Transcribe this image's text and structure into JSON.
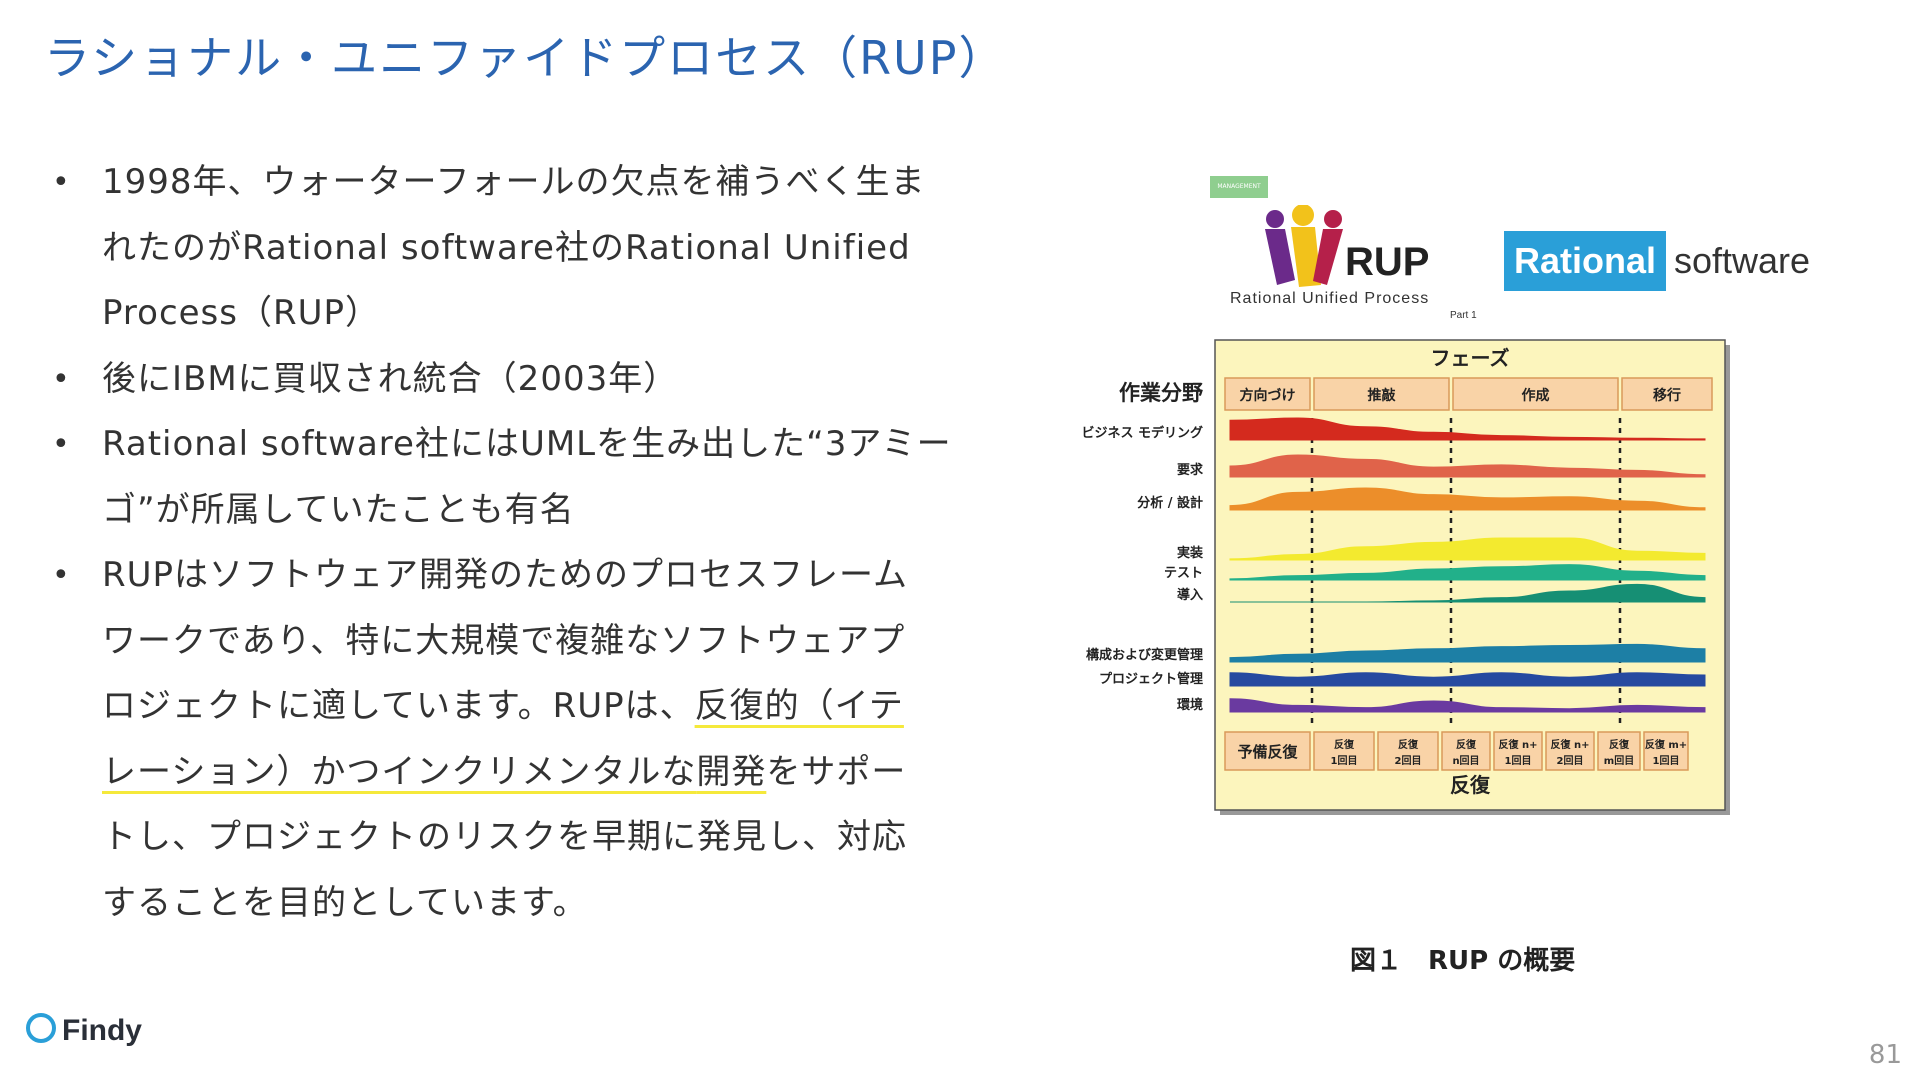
{
  "slide": {
    "title": "ラショナル・ユニファイドプロセス（RUP）",
    "page_number": "81"
  },
  "bullets": [
    {
      "lines": [
        "1998年、ウォーターフォールの欠点を補うべく生ま",
        "れたのがRational software社のRational Unified",
        "Process（RUP）"
      ]
    },
    {
      "lines": [
        "後にIBMに買収され統合（2003年）"
      ]
    },
    {
      "lines": [
        "Rational software社にはUMLを生み出した“3アミー",
        "ゴ”が所属していたことも有名"
      ]
    },
    {
      "parts": {
        "l1": "RUPはソフトウェア開発のためのプロセスフレーム",
        "l2": "ワークであり、特に大規模で複雑なソフトウェアプ",
        "l3a": "ロジェクトに適しています。RUPは、",
        "l3b": "反復的（イテ",
        "l4a": "レーション）かつインクリメンタルな",
        "l4b": "開発",
        "l4c": "をサポー",
        "l5": "トし、プロジェクトのリスクを早期に発見し、対応",
        "l6": "することを目的としています。"
      }
    }
  ],
  "figure": {
    "management_badge": "MANAGEMENT",
    "rup_logo_text": "RUP",
    "rup_logo_sub": "Rational Unified Process",
    "rup_logo_part": "Part 1",
    "rational_label": "Rational",
    "rational_software": "software",
    "caption": "図１　RUP の概要",
    "colors": {
      "panel_bg": "#fcf5bd",
      "tab_bg": "#f9d3a7",
      "tab_border": "#d99a5a"
    }
  },
  "chart_data": {
    "type": "area",
    "title": "フェーズ",
    "ylabel": "作業分野",
    "xlabel": "反復",
    "phases": [
      "方向づけ",
      "推敲",
      "作成",
      "移行"
    ],
    "iterations": [
      "予備反復",
      "反復\n1回目",
      "反復\n2回目",
      "反復\nn回目",
      "反復 n+\n1回目",
      "反復 n+\n2回目",
      "反復\nm回目",
      "反復 m+\n1回目"
    ],
    "disciplines": [
      {
        "name": "ビジネス モデリング",
        "color": "#d42a1e",
        "values": [
          0.9,
          1.0,
          0.6,
          0.35,
          0.2,
          0.12,
          0.08,
          0.05
        ]
      },
      {
        "name": "要求",
        "color": "#e0634a",
        "values": [
          0.5,
          1.0,
          0.8,
          0.45,
          0.55,
          0.4,
          0.3,
          0.1
        ]
      },
      {
        "name": "分析 / 設計",
        "color": "#ec8e2a",
        "values": [
          0.2,
          0.8,
          1.0,
          0.7,
          0.55,
          0.6,
          0.4,
          0.1
        ]
      },
      {
        "name": "実装",
        "color": "#f3ea2f",
        "values": [
          0.05,
          0.25,
          0.6,
          0.8,
          1.0,
          1.0,
          0.4,
          0.3
        ]
      },
      {
        "name": "テスト",
        "color": "#22b08a",
        "values": [
          0.05,
          0.2,
          0.3,
          0.5,
          0.6,
          0.7,
          0.4,
          0.2
        ]
      },
      {
        "name": "導入",
        "color": "#168f74",
        "values": [
          0.0,
          0.0,
          0.0,
          0.05,
          0.2,
          0.5,
          0.8,
          0.2
        ]
      },
      {
        "name": "構成および変更管理",
        "color": "#1d7fa5",
        "values": [
          0.2,
          0.35,
          0.5,
          0.6,
          0.7,
          0.75,
          0.8,
          0.6
        ]
      },
      {
        "name": "プロジェクト管理",
        "color": "#264aa0",
        "values": [
          0.6,
          0.4,
          0.6,
          0.4,
          0.6,
          0.4,
          0.6,
          0.5
        ]
      },
      {
        "name": "環境",
        "color": "#6a3aa0",
        "values": [
          0.6,
          0.3,
          0.2,
          0.5,
          0.2,
          0.15,
          0.3,
          0.2
        ]
      }
    ]
  }
}
